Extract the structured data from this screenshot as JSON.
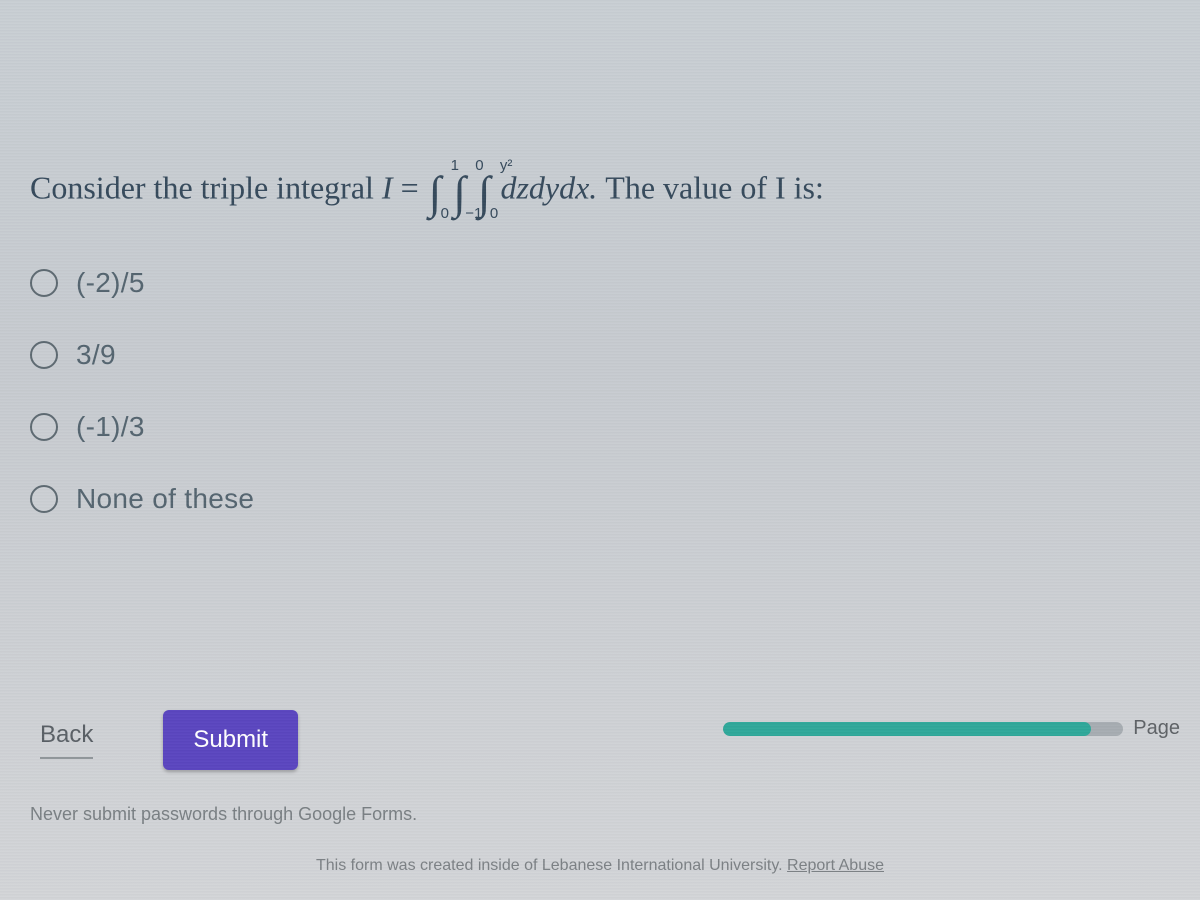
{
  "question": {
    "prefix": "Consider the triple integral ",
    "symbol": "I",
    "equals": " = ",
    "integrals": [
      {
        "lb": "0",
        "ub": "1"
      },
      {
        "lb": "−1",
        "ub": "0"
      },
      {
        "lb": "0",
        "ub": "y²"
      }
    ],
    "integrand": " dzdydx. ",
    "suffix": "The value of I is:"
  },
  "options": [
    {
      "label": "(-2)/5"
    },
    {
      "label": "3/9"
    },
    {
      "label": "(-1)/3"
    },
    {
      "label": "None of these"
    }
  ],
  "nav": {
    "back_label": "Back",
    "submit_label": "Submit"
  },
  "progress": {
    "percent": 92,
    "page_label": "Page "
  },
  "footer": {
    "password_warning": "Never submit passwords through Google Forms.",
    "created_text": "This form was created inside of Lebanese International University. ",
    "report_label": "Report Abuse"
  },
  "colors": {
    "submit_bg": "#5b46c0",
    "submit_text": "#ffffff",
    "progress_fill": "#2fa89a",
    "progress_track": "#a7adb2",
    "text_primary": "#364a5c",
    "text_secondary": "#5f6367"
  }
}
